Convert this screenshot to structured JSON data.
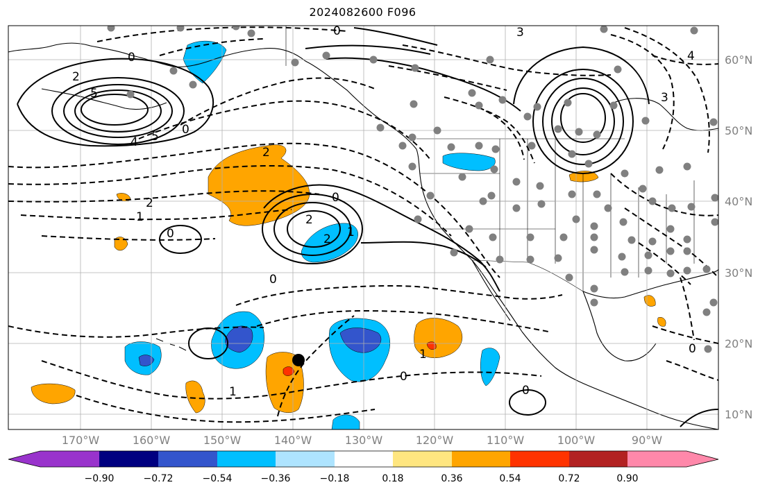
{
  "title": "2024082600 F096",
  "map": {
    "lat_labels": [
      "60°N",
      "50°N",
      "40°N",
      "30°N",
      "20°N",
      "10°N"
    ],
    "lon_labels": [
      "170°W",
      "160°W",
      "150°W",
      "140°W",
      "130°W",
      "120°W",
      "110°W",
      "100°W",
      "90°W"
    ],
    "contour_labels": [
      "0",
      "0",
      "0",
      "0",
      "0",
      "0",
      "0",
      "0",
      "0",
      "2",
      "2",
      "2",
      "2",
      "2",
      "1",
      "1",
      "1",
      "1",
      "3",
      "3",
      "4",
      "4",
      "5",
      "5"
    ],
    "colors": {
      "positive_contour": "#000000",
      "negative_contour": "#000000",
      "grid": "#b0b0b0",
      "station": "#808080",
      "marker": "#000000"
    }
  },
  "colorbar": {
    "tick_labels": [
      "−0.90",
      "−0.72",
      "−0.54",
      "−0.36",
      "−0.18",
      "0.18",
      "0.36",
      "0.54",
      "0.72",
      "0.90"
    ],
    "colors": [
      "#9933cc",
      "#000080",
      "#3355cc",
      "#00bfff",
      "#aee4ff",
      "#ffffff",
      "#ffe680",
      "#ffa500",
      "#ff3300",
      "#b22222",
      "#ff88aa"
    ]
  }
}
